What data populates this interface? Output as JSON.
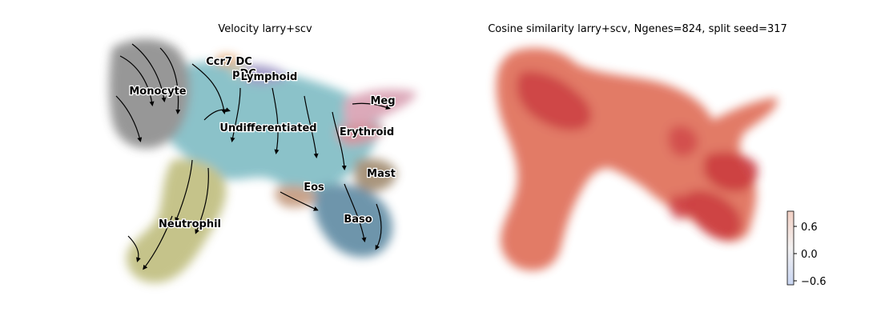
{
  "chart_data": [
    {
      "type": "scatter",
      "title": "Velocity larry+scv",
      "cluster_labels": [
        {
          "name": "Ccr7 DC",
          "color": "#e6a972"
        },
        {
          "name": "pDC",
          "color": "#d4c79e"
        },
        {
          "name": "Lymphoid",
          "color": "#9a92c2"
        },
        {
          "name": "Monocyte",
          "color": "#8c8c8c"
        },
        {
          "name": "Meg",
          "color": "#d9a0b2"
        },
        {
          "name": "Undifferentiated",
          "color": "#7fbcc4"
        },
        {
          "name": "Erythroid",
          "color": "#cf8a96"
        },
        {
          "name": "Mast",
          "color": "#a08a6e"
        },
        {
          "name": "Eos",
          "color": "#c49a7e"
        },
        {
          "name": "Baso",
          "color": "#5f8aa3"
        },
        {
          "name": "Neutrophil",
          "color": "#bfbd7e"
        }
      ],
      "overlay": "velocity streamlines",
      "axes": "off"
    },
    {
      "type": "scatter",
      "title": "Cosine similarity larry+scv, Ngenes=824, split seed=317",
      "colormap": "coolwarm",
      "colorbar": {
        "ticks": [
          "0.6",
          "0.0",
          "−0.6"
        ],
        "range": [
          -0.8,
          0.8
        ],
        "low_color": "#c9d6f2",
        "high_color": "#f2d0c4"
      },
      "point_color": "#e0705a",
      "high_color": "#c4252d",
      "axes": "off"
    }
  ]
}
